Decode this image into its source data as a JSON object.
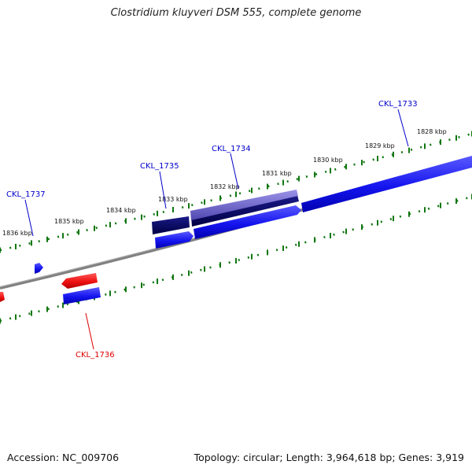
{
  "title": "Clostridium kluyveri DSM 555, complete genome",
  "footer": {
    "accession": "Accession: NC_009706",
    "summary": "Topology: circular; Length: 3,964,618 bp; Genes: 3,919"
  },
  "scale": {
    "unit": "kbp",
    "tick_labels": [
      "1836 kbp",
      "1835 kbp",
      "1834 kbp",
      "1833 kbp",
      "1832 kbp",
      "1831 kbp",
      "1830 kbp",
      "1829 kbp",
      "1828 kbp"
    ]
  },
  "genes": [
    {
      "name": "CKL_1737",
      "strand": "+",
      "color": "#0000cc"
    },
    {
      "name": "CKL_1736",
      "strand": "-",
      "color": "#dd0000"
    },
    {
      "name": "CKL_1735",
      "strand": "+",
      "color": "#0000cc"
    },
    {
      "name": "CKL_1734",
      "strand": "+",
      "color": "#0000cc"
    },
    {
      "name": "CKL_1733",
      "strand": "+",
      "color": "#0000cc"
    }
  ],
  "colors": {
    "forward_gene": "#1010ee",
    "reverse_gene": "#ee1111",
    "dark_gene": "#000066",
    "light_gene": "#6a63c8",
    "backbone": "#777777",
    "tick": "#117711"
  }
}
